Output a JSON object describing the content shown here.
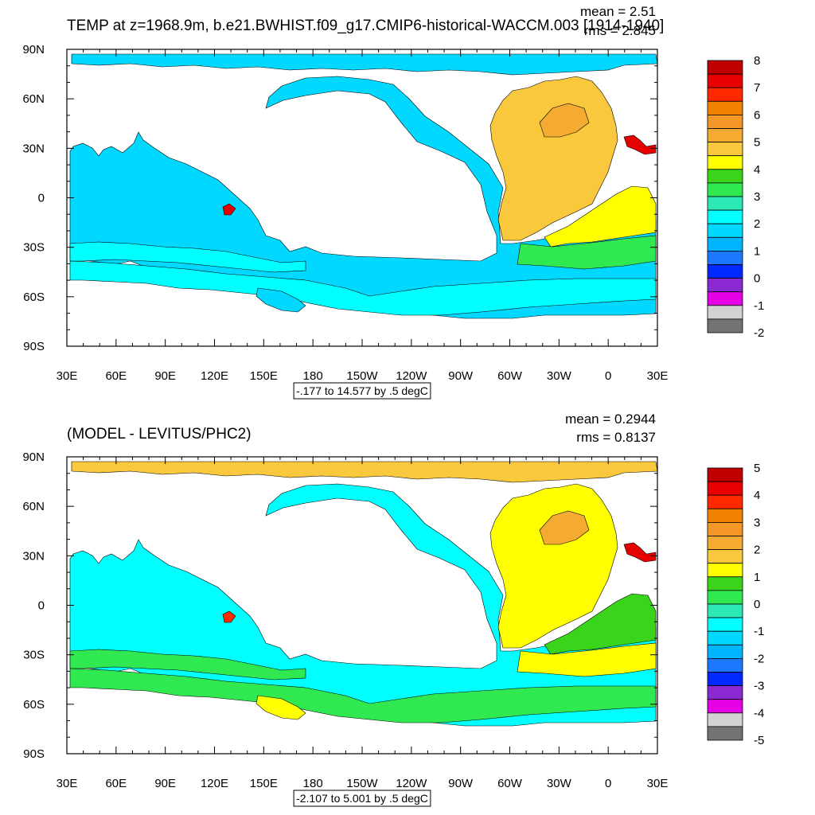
{
  "chart_data": [
    {
      "type": "heatmap",
      "title": "TEMP at z=1968.9m, b.e21.BWHIST.f09_g17.CMIP6-historical-WACCM.003 [1914-1940]",
      "mean_text": "mean = 2.51",
      "rms_text": "rms = 2.845",
      "range_text": "-.177 to 14.577 by .5 degC",
      "x_ticks": [
        "30E",
        "60E",
        "90E",
        "120E",
        "150E",
        "180",
        "150W",
        "120W",
        "90W",
        "60W",
        "30W",
        "0",
        "30E"
      ],
      "y_ticks": [
        "90N",
        "60N",
        "30N",
        "0",
        "30S",
        "60S",
        "90S"
      ],
      "colorbar_labels": [
        "8",
        "7",
        "6",
        "5",
        "4",
        "3",
        "2",
        "1",
        "0",
        "-1",
        "-2"
      ],
      "colorbar_colors": [
        "#c00000",
        "#e60000",
        "#ff2800",
        "#f08200",
        "#f59628",
        "#f5aa32",
        "#fac83c",
        "#ffff00",
        "#3ad51a",
        "#30e850",
        "#2ce8b4",
        "#00ffff",
        "#00d8ff",
        "#00b4ff",
        "#1e78ff",
        "#0028ff",
        "#8c28d2",
        "#e600e6",
        "#d2d2d2",
        "#737373"
      ],
      "region_values": {
        "arctic": 1.5,
        "pacific": 1.6,
        "indian": 1.9,
        "southern_band": 1.9,
        "southern_north": 2.4,
        "antarctic_coast": 1.4,
        "atlantic_north": 5.0,
        "atlantic_tropics": 4.5,
        "labrador": 5.6,
        "mediterranean": 7.8,
        "red_sea": 7.5,
        "south_atlantic_mid": 3.2
      }
    },
    {
      "type": "heatmap",
      "title": "(MODEL - LEVITUS/PHC2)",
      "mean_text": "mean = 0.2944",
      "rms_text": "rms = 0.8137",
      "range_text": "-2.107 to 5.001 by .5 degC",
      "x_ticks": [
        "30E",
        "60E",
        "90E",
        "120E",
        "150E",
        "180",
        "150W",
        "120W",
        "90W",
        "60W",
        "30W",
        "0",
        "30E"
      ],
      "y_ticks": [
        "90N",
        "60N",
        "30N",
        "0",
        "30S",
        "60S",
        "90S"
      ],
      "colorbar_labels": [
        "5",
        "4",
        "3",
        "2",
        "1",
        "0",
        "-1",
        "-2",
        "-3",
        "-4",
        "-5"
      ],
      "colorbar_colors": [
        "#c00000",
        "#e60000",
        "#ff2800",
        "#f08200",
        "#f59628",
        "#f5aa32",
        "#fac83c",
        "#ffff00",
        "#3ad51a",
        "#30e850",
        "#2ce8b4",
        "#00ffff",
        "#00d8ff",
        "#00b4ff",
        "#1e78ff",
        "#0028ff",
        "#8c28d2",
        "#e600e6",
        "#d2d2d2",
        "#737373"
      ],
      "region_values": {
        "arctic": 2.2,
        "pacific": -0.7,
        "indian": -0.8,
        "southern_band": 0.3,
        "southern_north": 0.4,
        "antarctic_coast": 1.6,
        "atlantic_north": 1.3,
        "atlantic_tropics": 0.8,
        "labrador": 2.6,
        "mediterranean": 4.6,
        "red_sea": 4.4,
        "south_atlantic_mid": 1.6
      }
    }
  ]
}
